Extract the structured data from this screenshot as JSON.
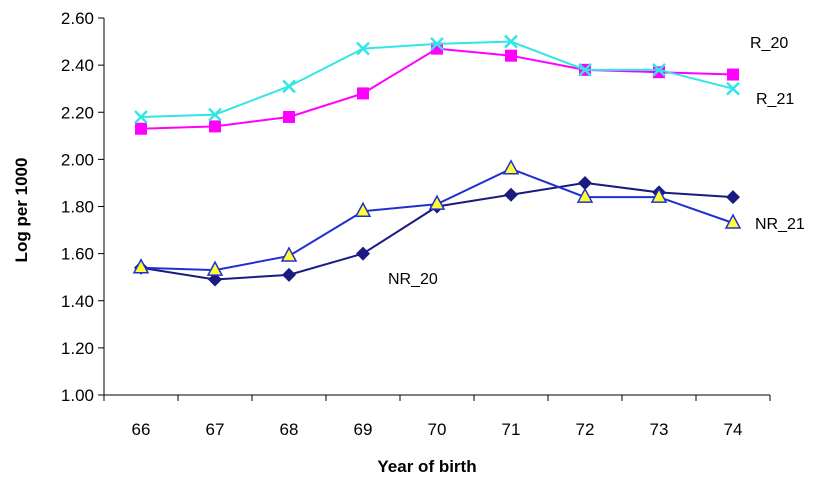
{
  "chart_data": {
    "type": "line",
    "title": "",
    "xlabel": "Year of birth",
    "ylabel": "Log per 1000",
    "categories": [
      "66",
      "67",
      "68",
      "69",
      "70",
      "71",
      "72",
      "73",
      "74"
    ],
    "ylim": [
      1.0,
      2.6
    ],
    "yticks": [
      "1.00",
      "1.20",
      "1.40",
      "1.60",
      "1.80",
      "2.00",
      "2.20",
      "2.40",
      "2.60"
    ],
    "grid": false,
    "legend": "none",
    "series": [
      {
        "name": "R_20",
        "color": "#FF00FF",
        "marker": "square",
        "values": [
          2.13,
          2.14,
          2.18,
          2.28,
          2.47,
          2.44,
          2.38,
          2.37,
          2.36
        ]
      },
      {
        "name": "R_21",
        "color": "#33E6E6",
        "marker": "x",
        "values": [
          2.18,
          2.19,
          2.31,
          2.47,
          2.49,
          2.5,
          2.38,
          2.38,
          2.3
        ]
      },
      {
        "name": "NR_20",
        "color": "#1A1A80",
        "marker": "diamond",
        "values": [
          1.54,
          1.49,
          1.51,
          1.6,
          1.8,
          1.85,
          1.9,
          1.86,
          1.84
        ]
      },
      {
        "name": "NR_21",
        "color": "#2030D0",
        "marker": "triangle",
        "marker_fill": "#FFFF33",
        "values": [
          1.54,
          1.53,
          1.59,
          1.78,
          1.81,
          1.96,
          1.84,
          1.84,
          1.73
        ]
      }
    ]
  }
}
